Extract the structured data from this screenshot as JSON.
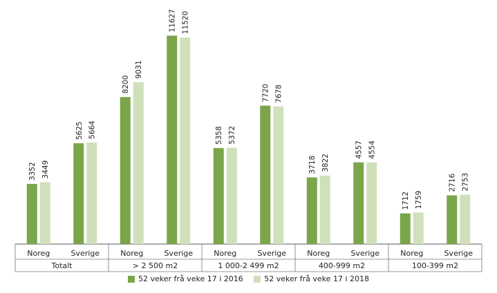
{
  "chart_data": {
    "type": "bar",
    "groups": [
      {
        "label": "Totalt",
        "subcategories": [
          "Noreg",
          "Sverige"
        ]
      },
      {
        "label": "> 2 500 m2",
        "subcategories": [
          "Noreg",
          "Sverige"
        ]
      },
      {
        "label": "1 000-2 499 m2",
        "subcategories": [
          "Noreg",
          "Sverige"
        ]
      },
      {
        "label": "400-999 m2",
        "subcategories": [
          "Noreg",
          "Sverige"
        ]
      },
      {
        "label": "100-399 m2",
        "subcategories": [
          "Noreg",
          "Sverige"
        ]
      }
    ],
    "series": [
      {
        "name": "52 veker frå veke 17 i 2016",
        "color": "#7aa54a",
        "values": [
          3352,
          5625,
          8200,
          11627,
          5358,
          7720,
          3718,
          4557,
          1712,
          2716
        ]
      },
      {
        "name": "52 veker frå veke 17 i 2018",
        "color": "#cfe0bb",
        "values": [
          3449,
          5664,
          9031,
          11520,
          5372,
          7678,
          3822,
          4554,
          1759,
          2753
        ]
      }
    ],
    "ylim": [
      0,
      12000
    ],
    "grid": false,
    "legend_position": "bottom",
    "title": "",
    "xlabel": "",
    "ylabel": ""
  }
}
